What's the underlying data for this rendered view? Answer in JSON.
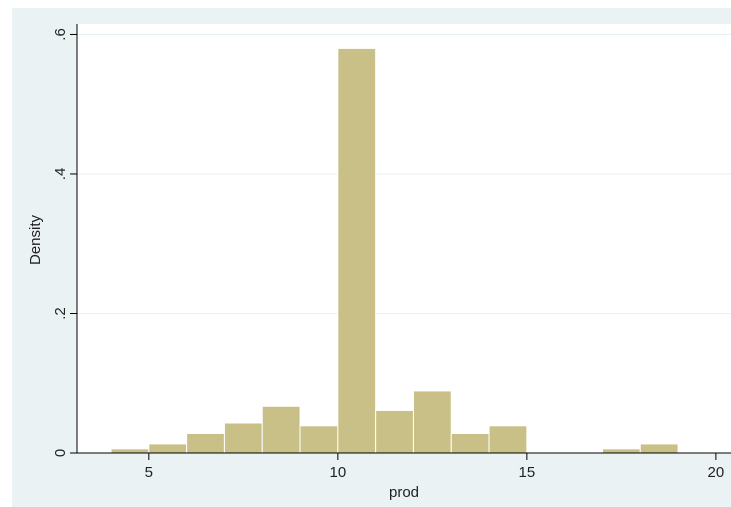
{
  "chart_data": {
    "type": "bar",
    "title": "",
    "xlabel": "prod",
    "ylabel": "Density",
    "xlim": [
      3.1,
      20.4
    ],
    "ylim": [
      0,
      0.615
    ],
    "bin_width": 1,
    "bins": [
      {
        "x0": 4,
        "x1": 5,
        "value": 0.006
      },
      {
        "x0": 5,
        "x1": 6,
        "value": 0.013
      },
      {
        "x0": 6,
        "x1": 7,
        "value": 0.028
      },
      {
        "x0": 7,
        "x1": 8,
        "value": 0.043
      },
      {
        "x0": 8,
        "x1": 9,
        "value": 0.067
      },
      {
        "x0": 9,
        "x1": 10,
        "value": 0.039
      },
      {
        "x0": 10,
        "x1": 11,
        "value": 0.58
      },
      {
        "x0": 11,
        "x1": 12,
        "value": 0.061
      },
      {
        "x0": 12,
        "x1": 13,
        "value": 0.089
      },
      {
        "x0": 13,
        "x1": 14,
        "value": 0.028
      },
      {
        "x0": 14,
        "x1": 15,
        "value": 0.039
      },
      {
        "x0": 17,
        "x1": 18,
        "value": 0.006
      },
      {
        "x0": 18,
        "x1": 19,
        "value": 0.013
      }
    ],
    "x_ticks": [
      {
        "value": 5,
        "label": "5"
      },
      {
        "value": 10,
        "label": "10"
      },
      {
        "value": 15,
        "label": "15"
      },
      {
        "value": 20,
        "label": "20"
      }
    ],
    "y_ticks": [
      {
        "value": 0,
        "label": "0"
      },
      {
        "value": 0.2,
        "label": ".2"
      },
      {
        "value": 0.4,
        "label": ".4"
      },
      {
        "value": 0.6,
        "label": ".6"
      }
    ],
    "grid": true,
    "legend": "none",
    "colors": {
      "bar_fill": "#c9c087",
      "bar_stroke": "#ffffff",
      "outer_background": "#eaf2f3",
      "plot_background": "#ffffff",
      "grid": "#eaf2f3",
      "axis": "#000000"
    }
  }
}
